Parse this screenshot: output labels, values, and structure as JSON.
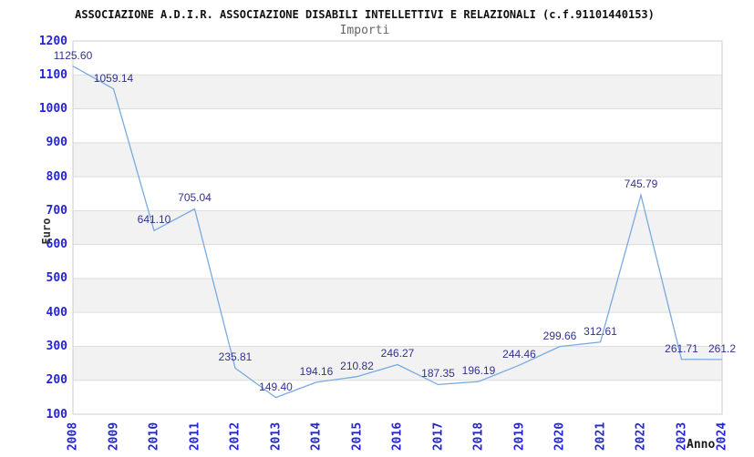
{
  "header": {
    "title": "ASSOCIAZIONE A.D.I.R. ASSOCIAZIONE DISABILI INTELLETTIVI E RELAZIONALI (c.f.91101440153)",
    "subtitle": "Importi"
  },
  "chart_data": {
    "type": "line",
    "title": "ASSOCIAZIONE A.D.I.R. ASSOCIAZIONE DISABILI INTELLETTIVI E RELAZIONALI (c.f.91101440153)",
    "subtitle": "Importi",
    "xlabel": "Anno",
    "ylabel": "Euro",
    "categories": [
      "2008",
      "2009",
      "2010",
      "2011",
      "2012",
      "2013",
      "2014",
      "2015",
      "2016",
      "2017",
      "2018",
      "2019",
      "2020",
      "2021",
      "2022",
      "2023",
      "2024"
    ],
    "values": [
      1125.6,
      1059.14,
      641.1,
      705.04,
      235.81,
      149.4,
      194.16,
      210.82,
      246.27,
      187.35,
      196.19,
      244.46,
      299.66,
      312.61,
      745.79,
      261.71,
      261.2
    ],
    "point_labels": [
      "1125.60",
      "1059.14",
      "641.10",
      "705.04",
      "235.81",
      "149.40",
      "194.16",
      "210.82",
      "246.27",
      "187.35",
      "196.19",
      "244.46",
      "299.66",
      "312.61",
      "745.79",
      "261.71",
      "261.2"
    ],
    "ylim": [
      100,
      1200
    ],
    "ytick_step": 100,
    "ytick_labels": [
      "100",
      "200",
      "300",
      "400",
      "500",
      "600",
      "700",
      "800",
      "900",
      "1000",
      "1100",
      "1200"
    ],
    "grid": true,
    "legend": "none",
    "band_style": "alternating horizontal bands, topmost band white",
    "colors": {
      "line": "#79aae3",
      "tick_label": "#2424d6",
      "point_label": "#32328f",
      "band": "#f2f2f2",
      "gridline": "#dcdcdc",
      "border": "#cccccc",
      "title": "#111111",
      "subtitle": "#666666",
      "axis_title": "#333333",
      "background": "#ffffff"
    }
  }
}
